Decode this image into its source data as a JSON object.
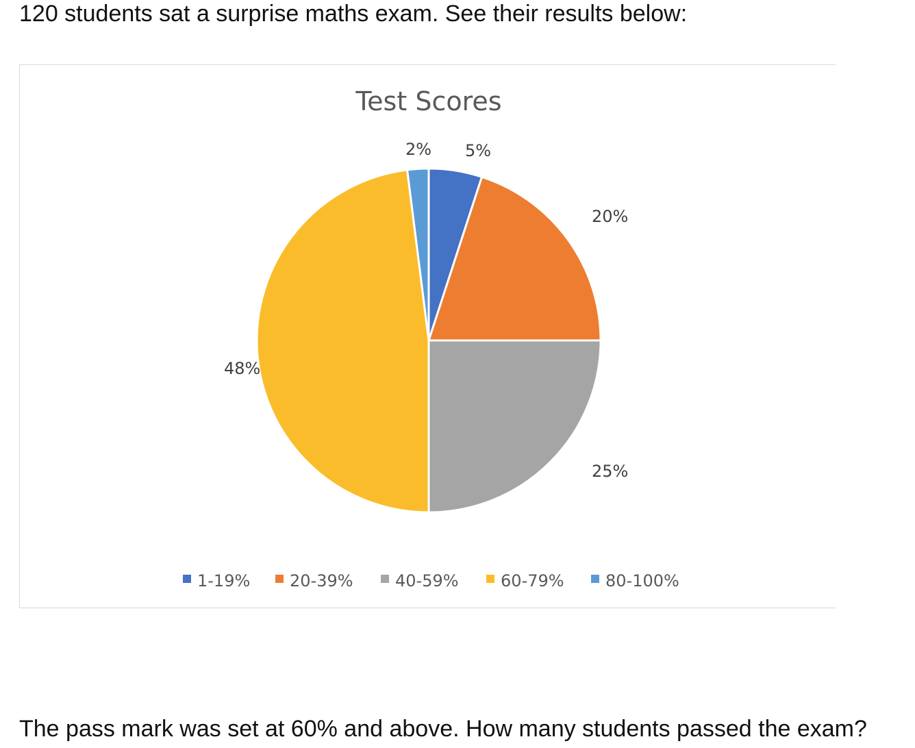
{
  "intro_text": "120 students sat a surprise maths exam. See their results below:",
  "question_text": "The pass mark was set at 60% and above. How many students passed the exam?",
  "chart_data": {
    "type": "pie",
    "title": "Test Scores",
    "legend_position": "bottom",
    "categories": [
      "1-19%",
      "20-39%",
      "40-59%",
      "60-79%",
      "80-100%"
    ],
    "values": [
      5,
      20,
      25,
      48,
      2
    ],
    "labels": [
      "5%",
      "20%",
      "25%",
      "48%",
      "2%"
    ],
    "colors": [
      "#4472C4",
      "#ED7D31",
      "#A5A5A5",
      "#FBBC2C",
      "#5B9BD5"
    ]
  }
}
